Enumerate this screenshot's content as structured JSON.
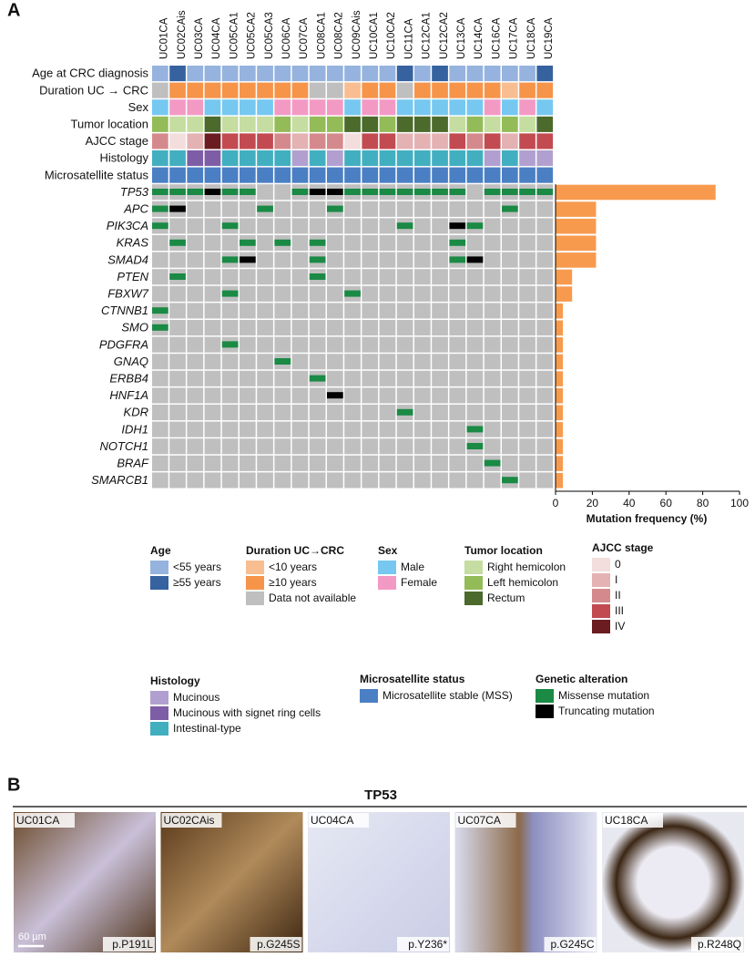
{
  "panel_a": {
    "label": "A",
    "samples": [
      "UC01CA",
      "UC02CAis",
      "UC03CA",
      "UC04CA",
      "UC05CA1",
      "UC05CA2",
      "UC05CA3",
      "UC06CA",
      "UC07CA",
      "UC08CA1",
      "UC08CA2",
      "UC09CAis",
      "UC10CA1",
      "UC10CA2",
      "UC11CA",
      "UC12CA1",
      "UC12CA2",
      "UC13CA",
      "UC14CA",
      "UC16CA",
      "UC17CA",
      "UC18CA",
      "UC19CA"
    ],
    "clinical_rows": [
      {
        "label": "Age at CRC diagnosis",
        "values": [
          0,
          1,
          0,
          0,
          0,
          0,
          0,
          0,
          0,
          0,
          0,
          0,
          0,
          0,
          1,
          0,
          1,
          0,
          0,
          0,
          0,
          0,
          1
        ]
      },
      {
        "label": "Duration UC → CRC",
        "values": [
          2,
          1,
          1,
          1,
          1,
          1,
          1,
          1,
          1,
          2,
          2,
          0,
          1,
          1,
          2,
          1,
          1,
          1,
          1,
          1,
          0,
          1,
          1
        ]
      },
      {
        "label": "Sex",
        "values": [
          0,
          1,
          1,
          0,
          0,
          0,
          0,
          1,
          1,
          1,
          1,
          0,
          1,
          1,
          0,
          0,
          0,
          0,
          0,
          1,
          0,
          1,
          0
        ]
      },
      {
        "label": "Tumor location",
        "values": [
          1,
          0,
          0,
          2,
          0,
          0,
          0,
          1,
          0,
          1,
          1,
          2,
          2,
          1,
          2,
          2,
          2,
          0,
          1,
          0,
          1,
          0,
          2
        ]
      },
      {
        "label": "AJCC stage",
        "values": [
          2,
          0,
          1,
          4,
          3,
          3,
          3,
          2,
          1,
          2,
          2,
          0,
          3,
          3,
          1,
          1,
          1,
          3,
          2,
          3,
          1,
          3,
          3
        ]
      },
      {
        "label": "Histology",
        "values": [
          2,
          2,
          1,
          1,
          2,
          2,
          2,
          2,
          0,
          2,
          0,
          2,
          2,
          2,
          2,
          2,
          2,
          2,
          2,
          0,
          2,
          0,
          0
        ]
      },
      {
        "label": "Microsatellite status",
        "values": [
          0,
          0,
          0,
          0,
          0,
          0,
          0,
          0,
          0,
          0,
          0,
          0,
          0,
          0,
          0,
          0,
          0,
          0,
          0,
          0,
          0,
          0,
          0
        ]
      }
    ],
    "gene_alterations": [
      [
        0,
        0,
        0,
        1,
        0,
        0,
        null,
        null,
        0,
        1,
        1,
        0,
        0,
        0,
        0,
        0,
        0,
        0,
        null,
        0,
        0,
        0,
        0
      ],
      [
        0,
        1,
        null,
        null,
        null,
        null,
        0,
        null,
        null,
        null,
        0,
        null,
        null,
        null,
        null,
        null,
        null,
        null,
        null,
        null,
        0,
        null,
        null
      ],
      [
        0,
        null,
        null,
        null,
        0,
        null,
        null,
        null,
        null,
        null,
        null,
        null,
        null,
        null,
        0,
        null,
        null,
        1,
        0,
        null,
        null,
        null,
        null
      ],
      [
        null,
        0,
        null,
        null,
        null,
        0,
        null,
        0,
        null,
        0,
        null,
        null,
        null,
        null,
        null,
        null,
        null,
        0,
        null,
        null,
        null,
        null,
        null
      ],
      [
        null,
        null,
        null,
        null,
        0,
        1,
        null,
        null,
        null,
        0,
        null,
        null,
        null,
        null,
        null,
        null,
        null,
        0,
        1,
        null,
        null,
        null,
        null
      ],
      [
        null,
        0,
        null,
        null,
        null,
        null,
        null,
        null,
        null,
        0,
        null,
        null,
        null,
        null,
        null,
        null,
        null,
        null,
        null,
        null,
        null,
        null,
        null
      ],
      [
        null,
        null,
        null,
        null,
        0,
        null,
        null,
        null,
        null,
        null,
        null,
        0,
        null,
        null,
        null,
        null,
        null,
        null,
        null,
        null,
        null,
        null,
        null
      ],
      [
        0,
        null,
        null,
        null,
        null,
        null,
        null,
        null,
        null,
        null,
        null,
        null,
        null,
        null,
        null,
        null,
        null,
        null,
        null,
        null,
        null,
        null,
        null
      ],
      [
        0,
        null,
        null,
        null,
        null,
        null,
        null,
        null,
        null,
        null,
        null,
        null,
        null,
        null,
        null,
        null,
        null,
        null,
        null,
        null,
        null,
        null,
        null
      ],
      [
        null,
        null,
        null,
        null,
        0,
        null,
        null,
        null,
        null,
        null,
        null,
        null,
        null,
        null,
        null,
        null,
        null,
        null,
        null,
        null,
        null,
        null,
        null
      ],
      [
        null,
        null,
        null,
        null,
        null,
        null,
        null,
        0,
        null,
        null,
        null,
        null,
        null,
        null,
        null,
        null,
        null,
        null,
        null,
        null,
        null,
        null,
        null
      ],
      [
        null,
        null,
        null,
        null,
        null,
        null,
        null,
        null,
        null,
        0,
        null,
        null,
        null,
        null,
        null,
        null,
        null,
        null,
        null,
        null,
        null,
        null,
        null
      ],
      [
        null,
        null,
        null,
        null,
        null,
        null,
        null,
        null,
        null,
        null,
        1,
        null,
        null,
        null,
        null,
        null,
        null,
        null,
        null,
        null,
        null,
        null,
        null
      ],
      [
        null,
        null,
        null,
        null,
        null,
        null,
        null,
        null,
        null,
        null,
        null,
        null,
        null,
        null,
        0,
        null,
        null,
        null,
        null,
        null,
        null,
        null,
        null
      ],
      [
        null,
        null,
        null,
        null,
        null,
        null,
        null,
        null,
        null,
        null,
        null,
        null,
        null,
        null,
        null,
        null,
        null,
        null,
        0,
        null,
        null,
        null,
        null
      ],
      [
        null,
        null,
        null,
        null,
        null,
        null,
        null,
        null,
        null,
        null,
        null,
        null,
        null,
        null,
        null,
        null,
        null,
        null,
        0,
        null,
        null,
        null,
        null
      ],
      [
        null,
        null,
        null,
        null,
        null,
        null,
        null,
        null,
        null,
        null,
        null,
        null,
        null,
        null,
        null,
        null,
        null,
        null,
        null,
        0,
        null,
        null,
        null
      ],
      [
        null,
        null,
        null,
        null,
        null,
        null,
        null,
        null,
        null,
        null,
        null,
        null,
        null,
        null,
        null,
        null,
        null,
        null,
        null,
        null,
        0,
        null,
        null
      ]
    ]
  },
  "chart_data": {
    "type": "bar",
    "orientation": "horizontal",
    "categories": [
      "TP53",
      "APC",
      "PIK3CA",
      "KRAS",
      "SMAD4",
      "PTEN",
      "FBXW7",
      "CTNNB1",
      "SMO",
      "PDGFRA",
      "GNAQ",
      "ERBB4",
      "HNF1A",
      "KDR",
      "IDH1",
      "NOTCH1",
      "BRAF",
      "SMARCB1"
    ],
    "values": [
      87,
      22,
      22,
      22,
      22,
      9,
      9,
      4,
      4,
      4,
      4,
      4,
      4,
      4,
      4,
      4,
      4,
      4
    ],
    "color": "#f79a4e",
    "xlim": [
      0,
      100
    ],
    "xticks": [
      0,
      20,
      40,
      60,
      80,
      100
    ],
    "xlabel": "Mutation frequency (%)"
  },
  "legends": [
    {
      "title": "Age",
      "items": [
        {
          "label": "<55 years",
          "color": "#95b3de"
        },
        {
          "label": "≥55 years",
          "color": "#36629f"
        }
      ]
    },
    {
      "title": "Duration UC→CRC",
      "items": [
        {
          "label": "<10 years",
          "color": "#f8be92"
        },
        {
          "label": "≥10 years",
          "color": "#f6944a"
        },
        {
          "label": "Data not available",
          "color": "#bfbfbf"
        }
      ]
    },
    {
      "title": "Sex",
      "items": [
        {
          "label": "Male",
          "color": "#76c8f0"
        },
        {
          "label": "Female",
          "color": "#f39ac4"
        }
      ]
    },
    {
      "title": "Tumor location",
      "items": [
        {
          "label": "Right hemicolon",
          "color": "#c5dda0"
        },
        {
          "label": "Left hemicolon",
          "color": "#93bb58"
        },
        {
          "label": "Rectum",
          "color": "#4b6a2b"
        }
      ]
    },
    {
      "title": "AJCC stage",
      "items": [
        {
          "label": "0",
          "color": "#f3dddd"
        },
        {
          "label": "I",
          "color": "#e4b2b3"
        },
        {
          "label": "II",
          "color": "#d48a8d"
        },
        {
          "label": "III",
          "color": "#c24b51"
        },
        {
          "label": "IV",
          "color": "#6b1c20"
        }
      ]
    },
    {
      "title": "Histology",
      "items": [
        {
          "label": "Mucinous",
          "color": "#b1a0cf"
        },
        {
          "label": "Mucinous with signet ring cells",
          "color": "#7e5da7"
        },
        {
          "label": "Intestinal-type",
          "color": "#42afc0"
        }
      ]
    },
    {
      "title": "Microsatellite status",
      "items": [
        {
          "label": "Microsatellite stable (MSS)",
          "color": "#4b7fc4"
        }
      ]
    },
    {
      "title": "Genetic alteration",
      "items": [
        {
          "label": "Missense mutation",
          "color": "#1a8a45"
        },
        {
          "label": "Truncating mutation",
          "color": "#000000"
        }
      ]
    }
  ],
  "panel_b": {
    "label": "B",
    "title": "TP53",
    "scale_bar": "60 µm",
    "images": [
      {
        "sample": "UC01CA",
        "mutation": "p.P191L"
      },
      {
        "sample": "UC02CAis",
        "mutation": "p.G245S"
      },
      {
        "sample": "UC04CA",
        "mutation": "p.Y236*"
      },
      {
        "sample": "UC07CA",
        "mutation": "p.G245C"
      },
      {
        "sample": "UC18CA",
        "mutation": "p.R248Q"
      }
    ]
  }
}
